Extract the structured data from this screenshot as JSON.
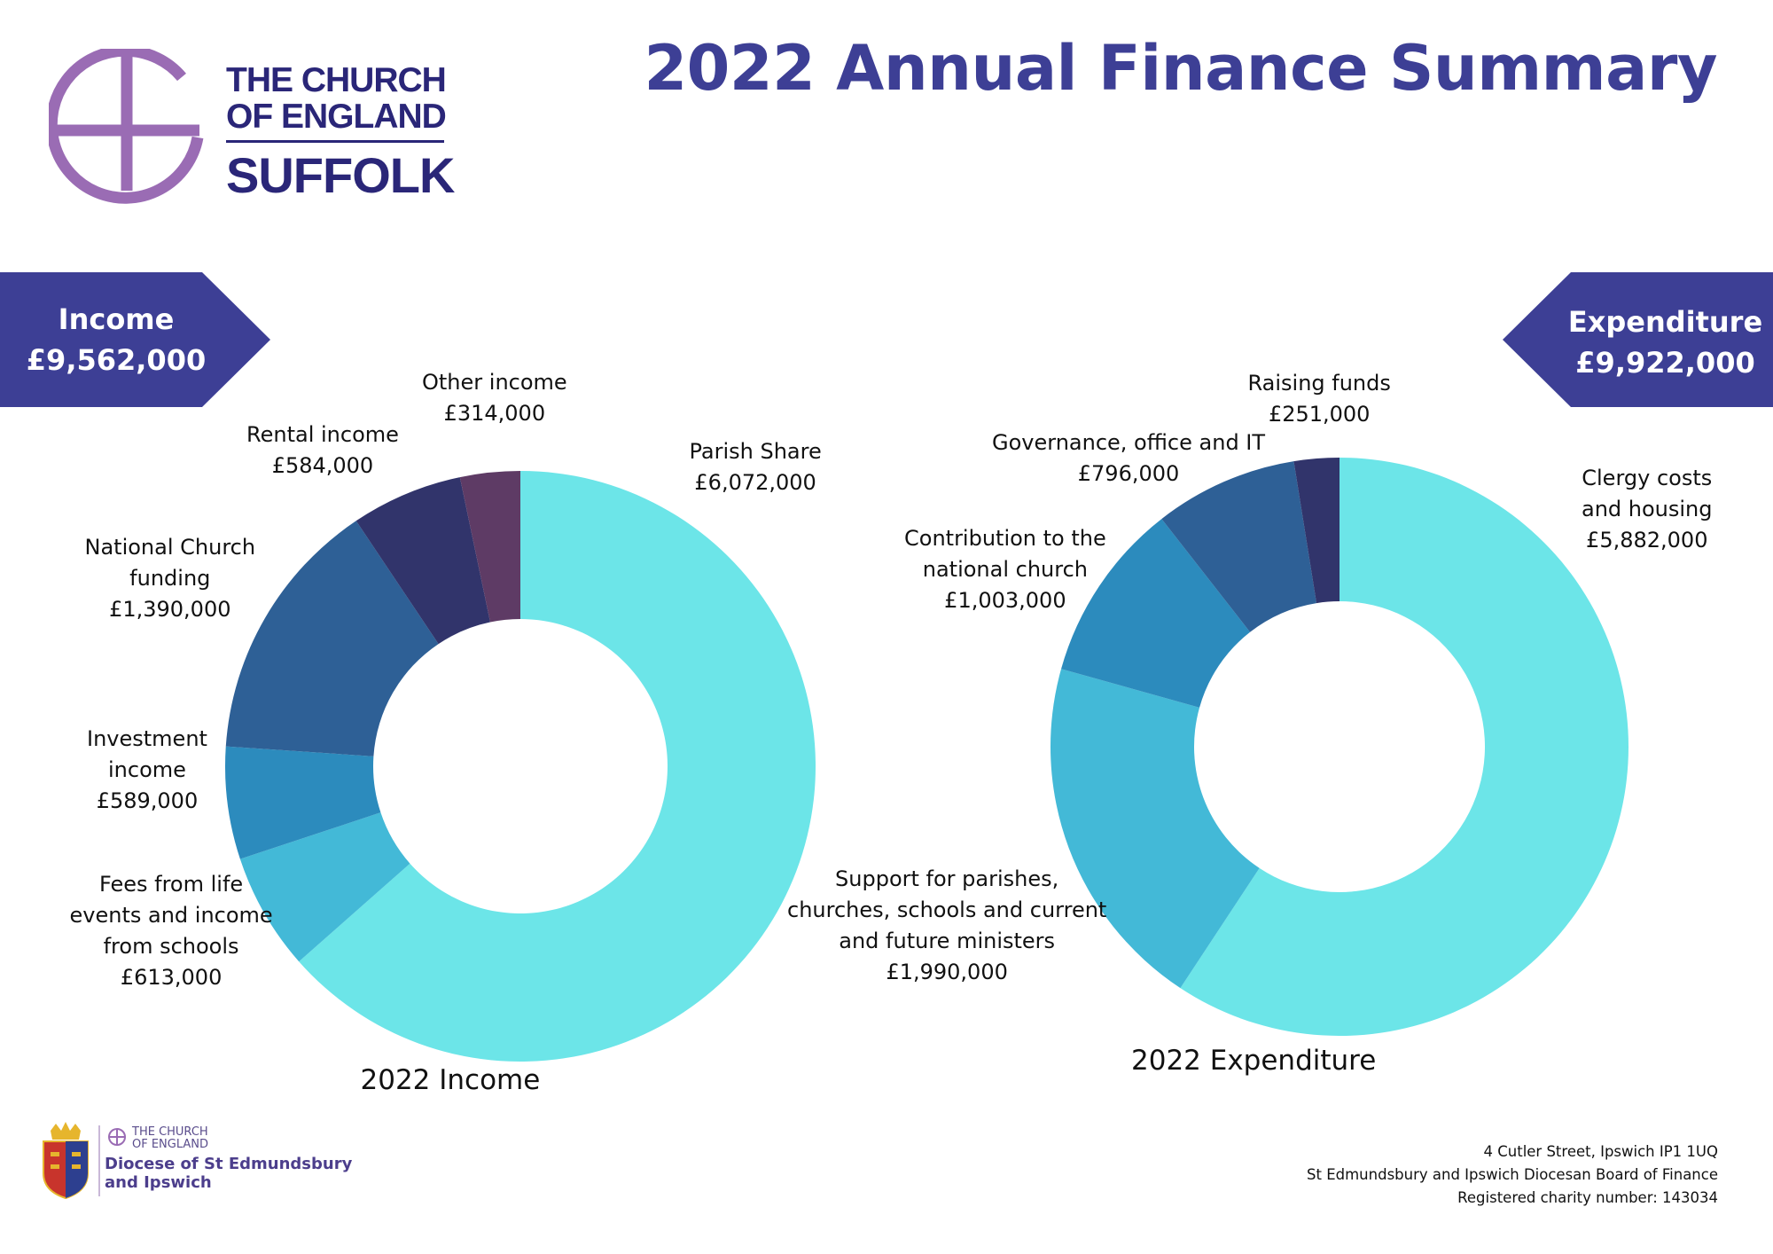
{
  "page": {
    "title": "2022 Annual Finance Summary"
  },
  "logo": {
    "line1": "THE CHURCH",
    "line2": "OF ENGLAND",
    "line3": "SUFFOLK"
  },
  "banners": {
    "income": {
      "label": "Income",
      "amount": "£9,562,000"
    },
    "expenditure": {
      "label": "Expenditure",
      "amount": "£9,922,000"
    }
  },
  "chart_data": [
    {
      "type": "pie",
      "title": "2022 Income",
      "series": [
        {
          "name": "Parish Share",
          "label_lines": [
            "Parish Share",
            "£6,072,000"
          ],
          "value": 6072000,
          "color": "#6ce5e8"
        },
        {
          "name": "Fees from life events and income from schools",
          "label_lines": [
            "Fees from life",
            "events and income",
            "from schools",
            "£613,000"
          ],
          "value": 613000,
          "color": "#43b9d7"
        },
        {
          "name": "Investment income",
          "label_lines": [
            "Investment",
            "income",
            "£589,000"
          ],
          "value": 589000,
          "color": "#2c8bbd"
        },
        {
          "name": "National Church funding",
          "label_lines": [
            "National Church",
            "funding",
            "£1,390,000"
          ],
          "value": 1390000,
          "color": "#2e6096"
        },
        {
          "name": "Rental income",
          "label_lines": [
            "Rental income",
            "£584,000"
          ],
          "value": 584000,
          "color": "#31346b"
        },
        {
          "name": "Other income",
          "label_lines": [
            "Other income",
            "£314,000"
          ],
          "value": 314000,
          "color": "#5e3b65"
        }
      ]
    },
    {
      "type": "pie",
      "title": "2022 Expenditure",
      "series": [
        {
          "name": "Clergy costs and housing",
          "label_lines": [
            "Clergy costs",
            "and housing",
            "£5,882,000"
          ],
          "value": 5882000,
          "color": "#6ce5e8"
        },
        {
          "name": "Support for parishes, churches, schools and current and future ministers",
          "label_lines": [
            "Support for parishes,",
            "churches, schools and current",
            "and future ministers",
            "£1,990,000"
          ],
          "value": 1990000,
          "color": "#43b9d7"
        },
        {
          "name": "Contribution to the national church",
          "label_lines": [
            "Contribution to the",
            "national church",
            "£1,003,000"
          ],
          "value": 1003000,
          "color": "#2c8bbd"
        },
        {
          "name": "Governance, office and IT",
          "label_lines": [
            "Governance, office and IT",
            "£796,000"
          ],
          "value": 796000,
          "color": "#2e6096"
        },
        {
          "name": "Raising funds",
          "label_lines": [
            "Raising funds",
            "£251,000"
          ],
          "value": 251000,
          "color": "#31346b"
        }
      ]
    }
  ],
  "footer": {
    "logo_line1": "THE CHURCH",
    "logo_line2": "OF ENGLAND",
    "logo_line3": "Diocese of St Edmundsbury",
    "logo_line4": "and Ipswich",
    "address": "4 Cutler Street, Ipswich IP1 1UQ",
    "board": "St Edmundsbury and Ipswich Diocesan Board of Finance",
    "charity": "Registered charity number: 143034"
  }
}
